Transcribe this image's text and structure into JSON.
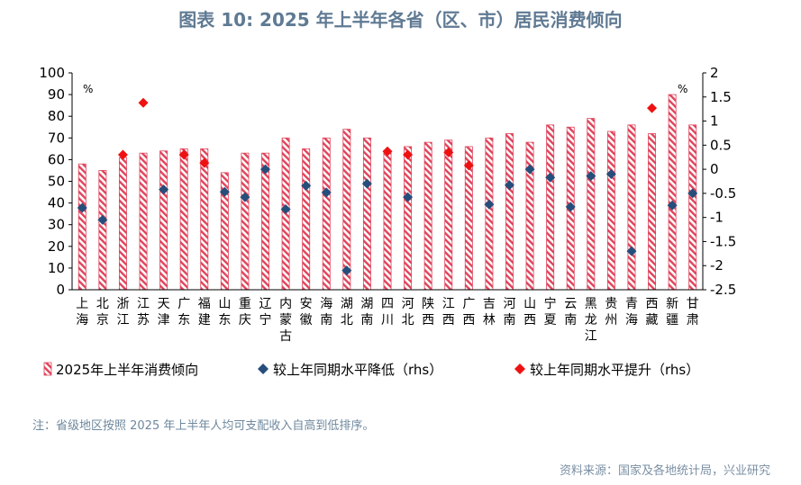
{
  "title": "图表 10: 2025 年上半年各省（区、市）居民消费倾向",
  "note": "注：省级地区按照 2025 年上半年人均可支配收入自高到低排序。",
  "source": "资料来源：国家及各地统计局，兴业研究",
  "colors": {
    "bar": "#e0435a",
    "bar_bg": "#ffffff",
    "decline": "#254e7b",
    "rise": "#ee1111",
    "axis": "#000000",
    "title": "#5f7a93"
  },
  "chart_data": {
    "type": "bar",
    "left_unit": "%",
    "right_unit": "%",
    "categories": [
      "上海",
      "北京",
      "浙江",
      "江苏",
      "天津",
      "广东",
      "福建",
      "山东",
      "重庆",
      "辽宁",
      "内蒙古",
      "安徽",
      "海南",
      "湖北",
      "湖南",
      "四川",
      "河北",
      "陕西",
      "江西",
      "广西",
      "吉林",
      "河南",
      "山西",
      "宁夏",
      "云南",
      "黑龙江",
      "贵州",
      "青海",
      "西藏",
      "新疆",
      "甘肃"
    ],
    "ylim_left": [
      0,
      100
    ],
    "yticks_left": [
      0,
      10,
      20,
      30,
      40,
      50,
      60,
      70,
      80,
      90,
      100
    ],
    "ylim_right": [
      -2.5,
      2
    ],
    "yticks_right": [
      2,
      1.5,
      1,
      0.5,
      0,
      -0.5,
      -1,
      -1.5,
      -2,
      -2.5
    ],
    "ytick_labels_right": [
      "2",
      "1.5",
      "1",
      "0.5",
      "0",
      "-0.5",
      "-1",
      "-1.5",
      "-2",
      "-2.5"
    ],
    "series": [
      {
        "name": "2025年上半年消费倾向",
        "axis": "left",
        "kind": "bar",
        "values": [
          58,
          55,
          61,
          63,
          64,
          65,
          65,
          54,
          63,
          63,
          70,
          65,
          70,
          74,
          70,
          64,
          66,
          68,
          69,
          66,
          70,
          72,
          68,
          76,
          75,
          79,
          73,
          76,
          72,
          90,
          76
        ]
      },
      {
        "name": "较上年同期水平降低（rhs）",
        "axis": "right",
        "kind": "diamond",
        "values": [
          -0.8,
          -1.05,
          null,
          null,
          -0.42,
          null,
          null,
          -0.47,
          -0.58,
          0.0,
          -0.83,
          -0.34,
          -0.48,
          -2.1,
          -0.3,
          null,
          -0.58,
          null,
          null,
          null,
          -0.73,
          -0.33,
          0.0,
          -0.17,
          -0.78,
          -0.14,
          -0.1,
          -1.7,
          null,
          -0.75,
          -0.5
        ]
      },
      {
        "name": "较上年同期水平提升（rhs）",
        "axis": "right",
        "kind": "diamond",
        "values": [
          null,
          null,
          0.3,
          1.38,
          null,
          0.3,
          0.13,
          null,
          null,
          null,
          null,
          null,
          null,
          null,
          null,
          0.37,
          0.3,
          null,
          0.35,
          0.08,
          null,
          null,
          null,
          null,
          null,
          null,
          null,
          null,
          1.27,
          null,
          null
        ]
      }
    ]
  }
}
